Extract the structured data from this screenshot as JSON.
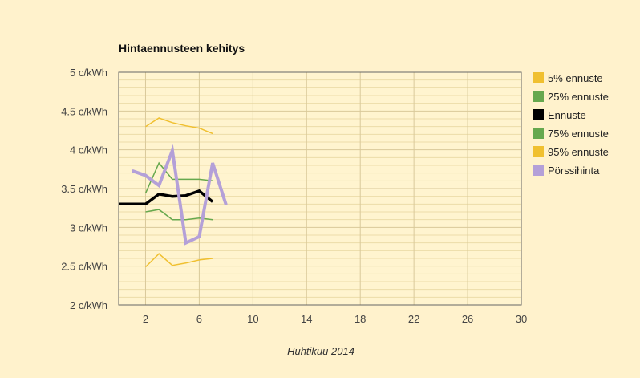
{
  "chart_data": {
    "type": "line",
    "title": "Hintaennusteen kehitys",
    "xlabel": "Huhtikuu 2014",
    "ylabel": "",
    "xlim": [
      0,
      30
    ],
    "ylim": [
      2,
      5
    ],
    "x_ticks": [
      2,
      6,
      10,
      14,
      18,
      22,
      26,
      30
    ],
    "x_tick_labels": [
      "2",
      "6",
      "10",
      "14",
      "18",
      "22",
      "26",
      "30"
    ],
    "y_ticks": [
      2,
      2.5,
      3,
      3.5,
      4,
      4.5,
      5
    ],
    "y_tick_labels": [
      "2 c/kWh",
      "2.5 c/kWh",
      "3 c/kWh",
      "3.5 c/kWh",
      "4 c/kWh",
      "4.5 c/kWh",
      "5 c/kWh"
    ],
    "grid": true,
    "legend_position": "right",
    "series": [
      {
        "name": "5% ennuste",
        "color": "#f0c030",
        "width": 1.5,
        "x": [
          2,
          3,
          4,
          5,
          6,
          7
        ],
        "y": [
          2.49,
          2.66,
          2.51,
          2.54,
          2.58,
          2.6
        ]
      },
      {
        "name": "25% ennuste",
        "color": "#66a84e",
        "width": 1.5,
        "x": [
          2,
          3,
          4,
          5,
          6,
          7
        ],
        "y": [
          3.2,
          3.23,
          3.1,
          3.1,
          3.12,
          3.1
        ]
      },
      {
        "name": "Ennuste",
        "color": "#000000",
        "width": 3.5,
        "x": [
          0,
          1,
          2,
          3,
          4,
          5,
          6,
          7
        ],
        "y": [
          3.3,
          3.3,
          3.3,
          3.43,
          3.4,
          3.41,
          3.47,
          3.33
        ]
      },
      {
        "name": "75% ennuste",
        "color": "#66a84e",
        "width": 1.5,
        "x": [
          2,
          3,
          4,
          5,
          6,
          7
        ],
        "y": [
          3.44,
          3.83,
          3.62,
          3.62,
          3.62,
          3.6
        ]
      },
      {
        "name": "95% ennuste",
        "color": "#f0c030",
        "width": 1.5,
        "x": [
          2,
          3,
          4,
          5,
          6,
          7
        ],
        "y": [
          4.3,
          4.41,
          4.35,
          4.31,
          4.28,
          4.21
        ]
      },
      {
        "name": "Pörssihinta",
        "color": "#b4a0d8",
        "width": 4,
        "x": [
          1,
          2,
          3,
          4,
          5,
          6,
          7,
          8
        ],
        "y": [
          3.73,
          3.67,
          3.54,
          3.99,
          2.8,
          2.88,
          3.83,
          3.29
        ]
      }
    ]
  }
}
